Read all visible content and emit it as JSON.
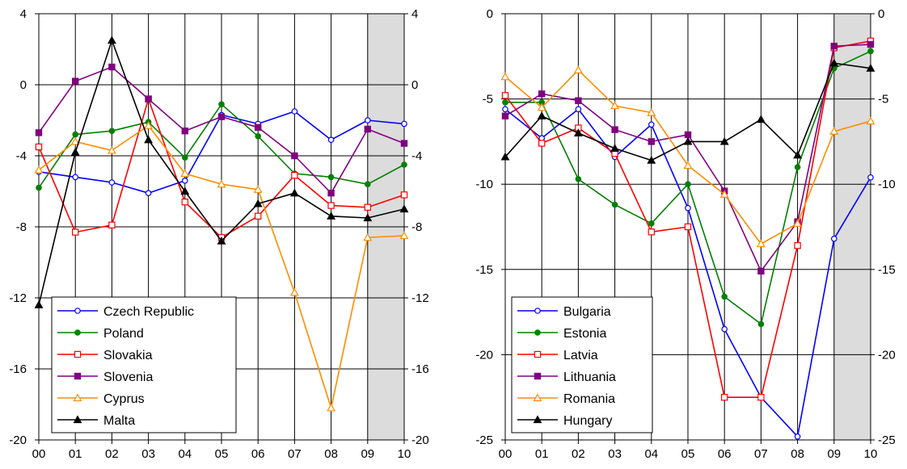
{
  "chart_data": [
    {
      "type": "line",
      "categories": [
        "00",
        "01",
        "02",
        "03",
        "04",
        "05",
        "06",
        "07",
        "08",
        "09",
        "10"
      ],
      "ylim": [
        -20,
        4
      ],
      "yticks": [
        4,
        0,
        -4,
        -8,
        -12,
        -16,
        -20
      ],
      "shaded_from": "09",
      "grid": "horizontal and vertical",
      "legend_placement": "bottom-left",
      "series": [
        {
          "name": "Czech Republic",
          "color": "#0000ff",
          "marker": "circle-open",
          "values": [
            -4.9,
            -5.2,
            -5.5,
            -6.1,
            -5.4,
            -1.7,
            -2.2,
            -1.5,
            -3.1,
            -2.0,
            -2.2
          ]
        },
        {
          "name": "Poland",
          "color": "#008000",
          "marker": "circle-filled",
          "values": [
            -5.8,
            -2.8,
            -2.6,
            -2.1,
            -4.1,
            -1.1,
            -2.9,
            -5.0,
            -5.2,
            -5.6,
            -4.5
          ]
        },
        {
          "name": "Slovakia",
          "color": "#ff0000",
          "marker": "square-open",
          "values": [
            -3.5,
            -8.3,
            -7.9,
            -0.8,
            -6.6,
            -8.6,
            -7.4,
            -5.1,
            -6.8,
            -6.9,
            -6.2
          ]
        },
        {
          "name": "Slovenia",
          "color": "#800080",
          "marker": "square-filled",
          "values": [
            -2.7,
            0.2,
            1.0,
            -0.8,
            -2.6,
            -1.8,
            -2.4,
            -4.0,
            -6.1,
            -2.5,
            -3.3
          ]
        },
        {
          "name": "Cyprus",
          "color": "#ff8c00",
          "marker": "triangle-open",
          "values": [
            -4.8,
            -3.2,
            -3.7,
            -2.3,
            -5.0,
            -5.6,
            -5.9,
            -11.7,
            -18.2,
            -8.6,
            -8.5
          ]
        },
        {
          "name": "Malta",
          "color": "#000000",
          "marker": "triangle-filled",
          "values": [
            -12.4,
            -3.8,
            2.5,
            -3.1,
            -6.0,
            -8.8,
            -6.7,
            -6.1,
            -7.4,
            -7.5,
            -7.0
          ]
        }
      ]
    },
    {
      "type": "line",
      "categories": [
        "00",
        "01",
        "02",
        "03",
        "04",
        "05",
        "06",
        "07",
        "08",
        "09",
        "10"
      ],
      "ylim": [
        -25,
        0
      ],
      "yticks": [
        0,
        -5,
        -10,
        -15,
        -20,
        -25
      ],
      "shaded_from": "09",
      "grid": "horizontal and vertical",
      "legend_placement": "bottom-left",
      "series": [
        {
          "name": "Bulgaria",
          "color": "#0000ff",
          "marker": "circle-open",
          "values": [
            -5.6,
            -7.3,
            -5.6,
            -8.4,
            -6.5,
            -11.4,
            -18.5,
            -22.5,
            -24.8,
            -13.2,
            -9.6
          ]
        },
        {
          "name": "Estonia",
          "color": "#008000",
          "marker": "circle-filled",
          "values": [
            -5.2,
            -5.2,
            -9.7,
            -11.2,
            -12.3,
            -10.0,
            -16.6,
            -18.2,
            -9.0,
            -3.2,
            -2.2
          ]
        },
        {
          "name": "Latvia",
          "color": "#ff0000",
          "marker": "square-open",
          "values": [
            -4.8,
            -7.6,
            -6.7,
            -8.2,
            -12.8,
            -12.5,
            -22.5,
            -22.5,
            -13.6,
            -2.0,
            -1.6
          ]
        },
        {
          "name": "Lithuania",
          "color": "#800080",
          "marker": "square-filled",
          "values": [
            -6.0,
            -4.7,
            -5.1,
            -6.8,
            -7.5,
            -7.1,
            -10.4,
            -15.1,
            -12.2,
            -1.9,
            -1.8
          ]
        },
        {
          "name": "Romania",
          "color": "#ff8c00",
          "marker": "triangle-open",
          "values": [
            -3.7,
            -5.5,
            -3.3,
            -5.4,
            -5.8,
            -8.9,
            -10.6,
            -13.5,
            -12.3,
            -6.9,
            -6.3
          ]
        },
        {
          "name": "Hungary",
          "color": "#000000",
          "marker": "triangle-filled",
          "values": [
            -8.4,
            -6.0,
            -7.0,
            -7.9,
            -8.6,
            -7.5,
            -7.5,
            -6.2,
            -8.3,
            -2.9,
            -3.2
          ]
        }
      ]
    }
  ]
}
